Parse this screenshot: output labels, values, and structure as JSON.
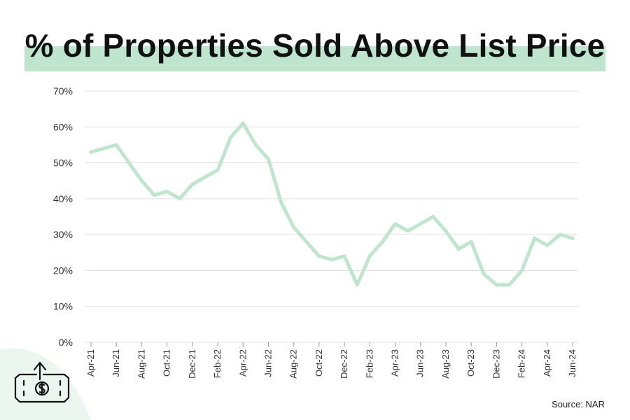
{
  "title": "% of Properties Sold Above List Price",
  "source": "Source: NAR",
  "icon": "money-up-arrow-icon",
  "colors": {
    "line": "#bfe5cf",
    "title_band": "#bfe5cf",
    "grid": "#dddddd"
  },
  "chart_data": {
    "type": "line",
    "title": "% of Properties Sold Above List Price",
    "xlabel": "",
    "ylabel": "",
    "ylim": [
      0,
      70
    ],
    "yticks": [
      "0%",
      "10%",
      "20%",
      "30%",
      "40%",
      "50%",
      "60%",
      "70%"
    ],
    "xtick_labels": [
      "Apr-21",
      "Jun-21",
      "Aug-21",
      "Oct-21",
      "Dec-21",
      "Feb-22",
      "Apr-22",
      "Jun-22",
      "Aug-22",
      "Oct-22",
      "Dec-22",
      "Feb-23",
      "Apr-23",
      "Jun-23",
      "Aug-23",
      "Oct-23",
      "Dec-23",
      "Feb-24",
      "Apr-24",
      "Jun-24"
    ],
    "grid": true,
    "legend": "none",
    "x": [
      "Apr-21",
      "May-21",
      "Jun-21",
      "Jul-21",
      "Aug-21",
      "Sep-21",
      "Oct-21",
      "Nov-21",
      "Dec-21",
      "Jan-22",
      "Feb-22",
      "Mar-22",
      "Apr-22",
      "May-22",
      "Jun-22",
      "Jul-22",
      "Aug-22",
      "Sep-22",
      "Oct-22",
      "Nov-22",
      "Dec-22",
      "Jan-23",
      "Feb-23",
      "Mar-23",
      "Apr-23",
      "May-23",
      "Jun-23",
      "Jul-23",
      "Aug-23",
      "Sep-23",
      "Oct-23",
      "Nov-23",
      "Dec-23",
      "Jan-24",
      "Feb-24",
      "Mar-24",
      "Apr-24",
      "May-24",
      "Jun-24"
    ],
    "series": [
      {
        "values": [
          53,
          54,
          55,
          50,
          45,
          41,
          42,
          40,
          44,
          46,
          48,
          57,
          61,
          55,
          51,
          39,
          32,
          28,
          24,
          23,
          24,
          16,
          24,
          28,
          33,
          31,
          33,
          35,
          31,
          26,
          28,
          19,
          16,
          16,
          20,
          29,
          27,
          30,
          29
        ]
      }
    ]
  }
}
